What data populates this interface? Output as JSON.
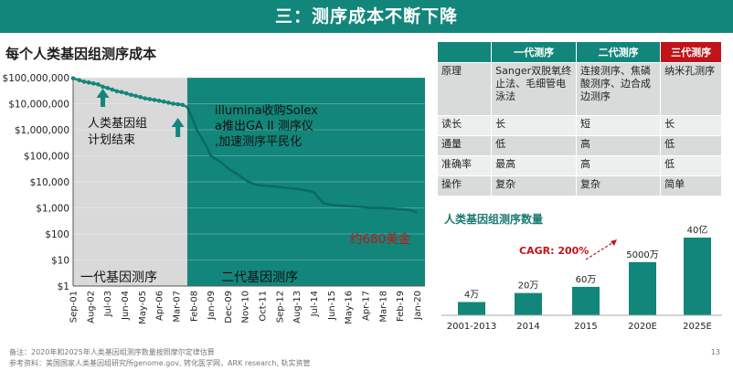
{
  "banner_title": "三：测序成本不断下降",
  "left_chart_title": "每个人类基因组测序成本",
  "chart_data": [
    {
      "type": "line",
      "title": "每个人类基因组测序成本",
      "y_scale": "log",
      "ylim": [
        1,
        100000000
      ],
      "y_ticks": [
        "$100,000,000",
        "$10,000,000",
        "$1,000,000",
        "$100,000",
        "$10,000",
        "$1,000",
        "$100",
        "$10",
        "$1"
      ],
      "x_ticks": [
        "Sep-01",
        "Aug-02",
        "Jul-03",
        "Jun-04",
        "May-05",
        "Apr-06",
        "Mar-07",
        "Feb-08",
        "Jan-09",
        "Dec-09",
        "Nov-10",
        "Oct-11",
        "Sep-12",
        "Aug-13",
        "Jul-14",
        "Jun-15",
        "May-16",
        "Apr-17",
        "Mar-18",
        "Feb-19",
        "Jan-20"
      ],
      "series": [
        {
          "x": [
            "2001-09",
            "2002-01",
            "2002-04",
            "2002-07",
            "2002-10",
            "2003-01",
            "2003-04",
            "2003-07",
            "2003-10",
            "2004-01",
            "2004-04",
            "2004-07",
            "2004-10",
            "2005-01",
            "2005-04",
            "2005-07",
            "2005-10",
            "2006-01",
            "2006-04",
            "2006-07",
            "2006-10",
            "2007-01",
            "2007-04",
            "2007-07",
            "2007-10",
            "2008-01",
            "2008-04",
            "2008-07",
            "2008-10",
            "2009-01",
            "2009-07",
            "2010-01",
            "2010-07",
            "2011-01",
            "2011-07",
            "2012-01",
            "2012-07",
            "2013-01",
            "2013-07",
            "2014-01",
            "2014-07",
            "2015-01",
            "2015-07",
            "2016-01",
            "2016-07",
            "2017-01",
            "2017-07",
            "2018-01",
            "2018-07",
            "2019-01",
            "2019-07",
            "2020-01"
          ],
          "y": [
            95000000,
            80000000,
            70000000,
            65000000,
            60000000,
            55000000,
            45000000,
            40000000,
            35000000,
            30000000,
            28000000,
            25000000,
            22000000,
            20000000,
            18000000,
            16000000,
            15000000,
            14000000,
            13000000,
            12000000,
            11000000,
            10000000,
            9500000,
            9000000,
            7500000,
            3000000,
            1000000,
            500000,
            250000,
            100000,
            60000,
            30000,
            18000,
            10000,
            7500,
            7000,
            6500,
            5800,
            5500,
            4800,
            4000,
            1500,
            1300,
            1200,
            1150,
            1100,
            1000,
            1000,
            950,
            900,
            850,
            680
          ]
        }
      ],
      "region_labels": [
        "一代基因测序",
        "二代基因测序"
      ],
      "annotations": [
        "人类基因组计划结束",
        "illumina收购Solexa推出GA II 测序仪,加速测序平民化",
        "约680美金"
      ],
      "colors": {
        "gen1_bg": "#d9d9d9",
        "gen2_bg": "#12867a",
        "line_gen1": "#12867a",
        "line_gen2": "#12867a",
        "highlight": "#c0141b"
      }
    },
    {
      "type": "bar",
      "title": "人类基因组测序数量",
      "categories": [
        "2001-2013",
        "2014",
        "2015",
        "2020E",
        "2025E"
      ],
      "values": [
        40000,
        200000,
        600000,
        50000000,
        4000000000
      ],
      "data_labels": [
        "4万",
        "20万",
        "60万",
        "5000万",
        "40亿"
      ],
      "annotation": "CAGR: 200%",
      "colors": {
        "bar": "#12867a",
        "annotation": "#c0141b"
      }
    }
  ],
  "comparison_table": {
    "headers": [
      "",
      "一代测序",
      "二代测序",
      "三代测序"
    ],
    "rows": [
      [
        "原理",
        "Sanger双脱氧终止法、毛细管电泳法",
        "连接测序、焦磷酸测序、边合成边测序",
        "纳米孔测序"
      ],
      [
        "读长",
        "长",
        "短",
        "长"
      ],
      [
        "通量",
        "低",
        "高",
        "低"
      ],
      [
        "准确率",
        "最高",
        "高",
        "低"
      ],
      [
        "操作",
        "复杂",
        "复杂",
        "简单"
      ]
    ]
  },
  "bottom_chart_title": "人类基因组测序数量",
  "footnote_1": "备注：2020年和2025年人类基因组测序数量按照摩尔定律估算",
  "footnote_2": "参考资料：美国国家人类基因组研究所genome.gov, 转化医学网，ARK research, 轨实资管",
  "page_number": "13"
}
